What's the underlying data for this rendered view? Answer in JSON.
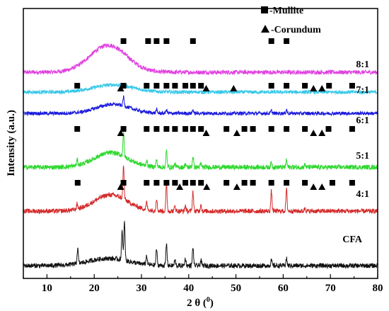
{
  "chart_data": {
    "type": "line",
    "title": "",
    "xlabel": "2 θ (°)",
    "xlabel_main": "2 θ (",
    "xlabel_unit": "0",
    "xlabel_close": ")",
    "ylabel": "Intensity (a.u.)",
    "xlim": [
      5,
      80
    ],
    "xticks": [
      10,
      20,
      30,
      40,
      50,
      60,
      70,
      80
    ],
    "y_tick_labels": false,
    "legend": [
      {
        "marker": "square",
        "label": "-Mullite"
      },
      {
        "marker": "triangle",
        "label": "-Corundum"
      }
    ],
    "legend_position": "top-right",
    "series": [
      {
        "name": "8:1",
        "color": "#e040e0",
        "baseline": 8,
        "noise": 1.2,
        "humps": [
          {
            "center": 23,
            "height": 15,
            "width": 5.5
          }
        ],
        "peaks": [],
        "squares": [],
        "triangles": []
      },
      {
        "name": "7:1",
        "color": "#35c8e8",
        "baseline": 5.5,
        "noise": 1.0,
        "humps": [
          {
            "center": 24,
            "height": 4,
            "width": 6
          }
        ],
        "peaks": [],
        "squares": [],
        "triangles": []
      },
      {
        "name": "6:1",
        "color": "#1a1adc",
        "baseline": 6,
        "noise": 1.0,
        "humps": [
          {
            "center": 24,
            "height": 5,
            "width": 5
          }
        ],
        "peaks": [
          [
            26.2,
            5
          ],
          [
            33.2,
            2
          ],
          [
            35.3,
            2
          ],
          [
            40.9,
            2
          ],
          [
            57.5,
            1.5
          ],
          [
            60.7,
            2
          ]
        ],
        "squares": [
          26.2,
          31.4,
          33.2,
          35.3,
          40.9,
          57.5,
          60.7
        ],
        "triangles": []
      },
      {
        "name": "5:1",
        "color": "#2ed82e",
        "baseline": 5.5,
        "noise": 1.3,
        "humps": [
          {
            "center": 23.5,
            "height": 8,
            "width": 5
          }
        ],
        "peaks": [
          [
            16.4,
            3
          ],
          [
            26.2,
            13
          ],
          [
            31.1,
            3
          ],
          [
            33.2,
            4
          ],
          [
            35.3,
            9
          ],
          [
            37.1,
            2
          ],
          [
            39.3,
            2
          ],
          [
            40.9,
            6
          ],
          [
            42.6,
            2
          ],
          [
            57.5,
            3
          ],
          [
            60.7,
            4
          ],
          [
            64.6,
            1.5
          ]
        ],
        "squares": [
          16.4,
          26.2,
          31.1,
          33.2,
          35.3,
          37.1,
          39.3,
          40.9,
          42.6,
          57.5,
          60.7,
          64.6,
          69.7,
          74.6
        ],
        "triangles": [
          25.6,
          43.7,
          49.5,
          66.4,
          68.2
        ]
      },
      {
        "name": "4:1",
        "color": "#d42b2b",
        "baseline": 5.5,
        "noise": 1.3,
        "humps": [
          {
            "center": 23.5,
            "height": 9,
            "width": 5
          }
        ],
        "peaks": [
          [
            16.4,
            3
          ],
          [
            26.2,
            18
          ],
          [
            31.1,
            4
          ],
          [
            33.2,
            7
          ],
          [
            35.3,
            15
          ],
          [
            37.1,
            3
          ],
          [
            39.3,
            3
          ],
          [
            40.9,
            11
          ],
          [
            42.6,
            4
          ],
          [
            57.5,
            11
          ],
          [
            60.7,
            12
          ],
          [
            64.6,
            2
          ]
        ],
        "squares": [
          16.4,
          26.2,
          31.1,
          33.2,
          35.3,
          37.1,
          39.3,
          40.9,
          42.6,
          48,
          51.8,
          53.6,
          57.5,
          60.7,
          64.6,
          69.6,
          74.6
        ],
        "triangles": [
          25.6,
          43.7,
          50.2,
          66.4,
          68.2
        ]
      },
      {
        "name": "CFA",
        "color": "#111111",
        "baseline": 4,
        "noise": 1.3,
        "humps": [
          {
            "center": 23,
            "height": 4,
            "width": 6
          }
        ],
        "peaks": [
          [
            16.5,
            8
          ],
          [
            25.9,
            16
          ],
          [
            26.4,
            21
          ],
          [
            31.1,
            5
          ],
          [
            33.2,
            9
          ],
          [
            35.3,
            12
          ],
          [
            37.1,
            3
          ],
          [
            39.3,
            4
          ],
          [
            40.9,
            10
          ],
          [
            42.6,
            3
          ],
          [
            57.5,
            3
          ],
          [
            60.7,
            4
          ]
        ],
        "squares": [
          16.5,
          26.2,
          31.1,
          33.2,
          35.3,
          37.1,
          39.3,
          40.9,
          42.6,
          48,
          51.8,
          53.6,
          57.5,
          60.7,
          64.6,
          70.4,
          74.6
        ],
        "triangles": [
          25.6,
          38.1,
          43.8,
          50.2,
          66.4,
          68.2
        ]
      }
    ]
  }
}
